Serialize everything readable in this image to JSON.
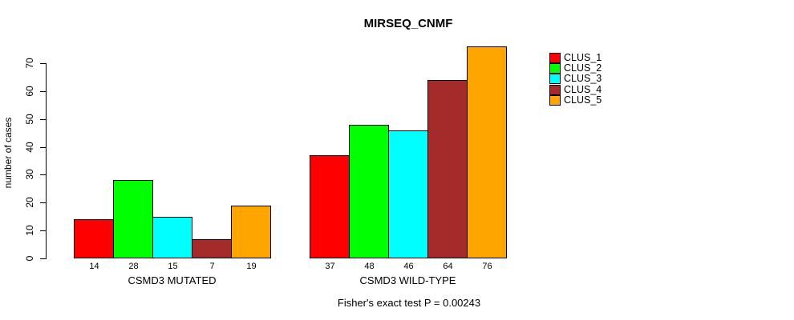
{
  "chart": {
    "title": "MIRSEQ_CNMF",
    "y_axis_label": "number of cases",
    "footer": "Fisher's exact test P = 0.00243"
  },
  "legend": {
    "position": "topright",
    "items": [
      {
        "label": "CLUS_1",
        "color": "#FF0000"
      },
      {
        "label": "CLUS_2",
        "color": "#00FF00"
      },
      {
        "label": "CLUS_3",
        "color": "#00FFFF"
      },
      {
        "label": "CLUS_4",
        "color": "#A52A2A"
      },
      {
        "label": "CLUS_5",
        "color": "#FFA500"
      }
    ]
  },
  "chart_data": {
    "type": "bar",
    "title": "MIRSEQ_CNMF",
    "ylabel": "number of cases",
    "xlabel": "",
    "ylim": [
      0,
      70
    ],
    "yticks": [
      0,
      10,
      20,
      30,
      40,
      50,
      60,
      70
    ],
    "grid": false,
    "legend_position": "topright",
    "categories": [
      "CSMD3 MUTATED",
      "CSMD3 WILD-TYPE"
    ],
    "series": [
      {
        "name": "CLUS_1",
        "color": "#FF0000",
        "values": [
          14,
          37
        ]
      },
      {
        "name": "CLUS_2",
        "color": "#00FF00",
        "values": [
          28,
          48
        ]
      },
      {
        "name": "CLUS_3",
        "color": "#00FFFF",
        "values": [
          15,
          46
        ]
      },
      {
        "name": "CLUS_4",
        "color": "#A52A2A",
        "values": [
          7,
          64
        ]
      },
      {
        "name": "CLUS_5",
        "color": "#FFA500",
        "values": [
          19,
          76
        ]
      }
    ],
    "bar_value_labels": {
      "CSMD3 MUTATED": [
        14,
        28,
        15,
        7,
        19
      ],
      "CSMD3 WILD-TYPE": [
        37,
        48,
        46,
        64,
        76
      ]
    },
    "annotation": "Fisher's exact test P = 0.00243"
  }
}
